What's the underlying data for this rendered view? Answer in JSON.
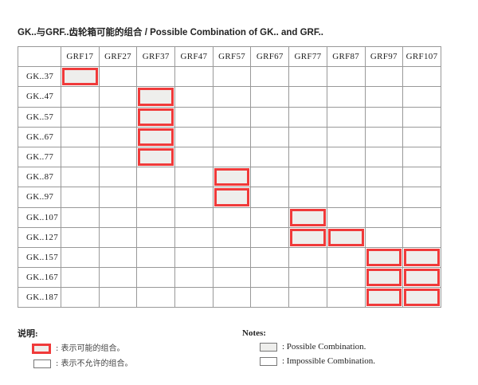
{
  "title": "GK..与GRF..齿轮箱可能的组合  / Possible Combination of GK.. and GRF..",
  "columns": [
    "GRF17",
    "GRF27",
    "GRF37",
    "GRF47",
    "GRF57",
    "GRF67",
    "GRF77",
    "GRF87",
    "GRF97",
    "GRF107"
  ],
  "rows": [
    {
      "label": "GK..37",
      "possible": [
        "GRF17"
      ]
    },
    {
      "label": "GK..47",
      "possible": [
        "GRF37"
      ]
    },
    {
      "label": "GK..57",
      "possible": [
        "GRF37"
      ]
    },
    {
      "label": "GK..67",
      "possible": [
        "GRF37"
      ]
    },
    {
      "label": "GK..77",
      "possible": [
        "GRF37"
      ]
    },
    {
      "label": "GK..87",
      "possible": [
        "GRF57"
      ]
    },
    {
      "label": "GK..97",
      "possible": [
        "GRF57"
      ]
    },
    {
      "label": "GK..107",
      "possible": [
        "GRF77"
      ]
    },
    {
      "label": "GK..127",
      "possible": [
        "GRF77",
        "GRF87"
      ]
    },
    {
      "label": "GK..157",
      "possible": [
        "GRF97",
        "GRF107"
      ]
    },
    {
      "label": "GK..167",
      "possible": [
        "GRF97",
        "GRF107"
      ]
    },
    {
      "label": "GK..187",
      "possible": [
        "GRF97",
        "GRF107"
      ]
    }
  ],
  "legend_cn": {
    "heading": "说明:",
    "possible": ":  表示可能的组合。",
    "impossible": ":  表示不允许的组合。"
  },
  "legend_en": {
    "heading": "Notes:",
    "possible": ": Possible Combination.",
    "impossible": ": Impossible Combination."
  },
  "colors": {
    "highlight": "#f03a3a",
    "fill": "#eeeeec"
  }
}
